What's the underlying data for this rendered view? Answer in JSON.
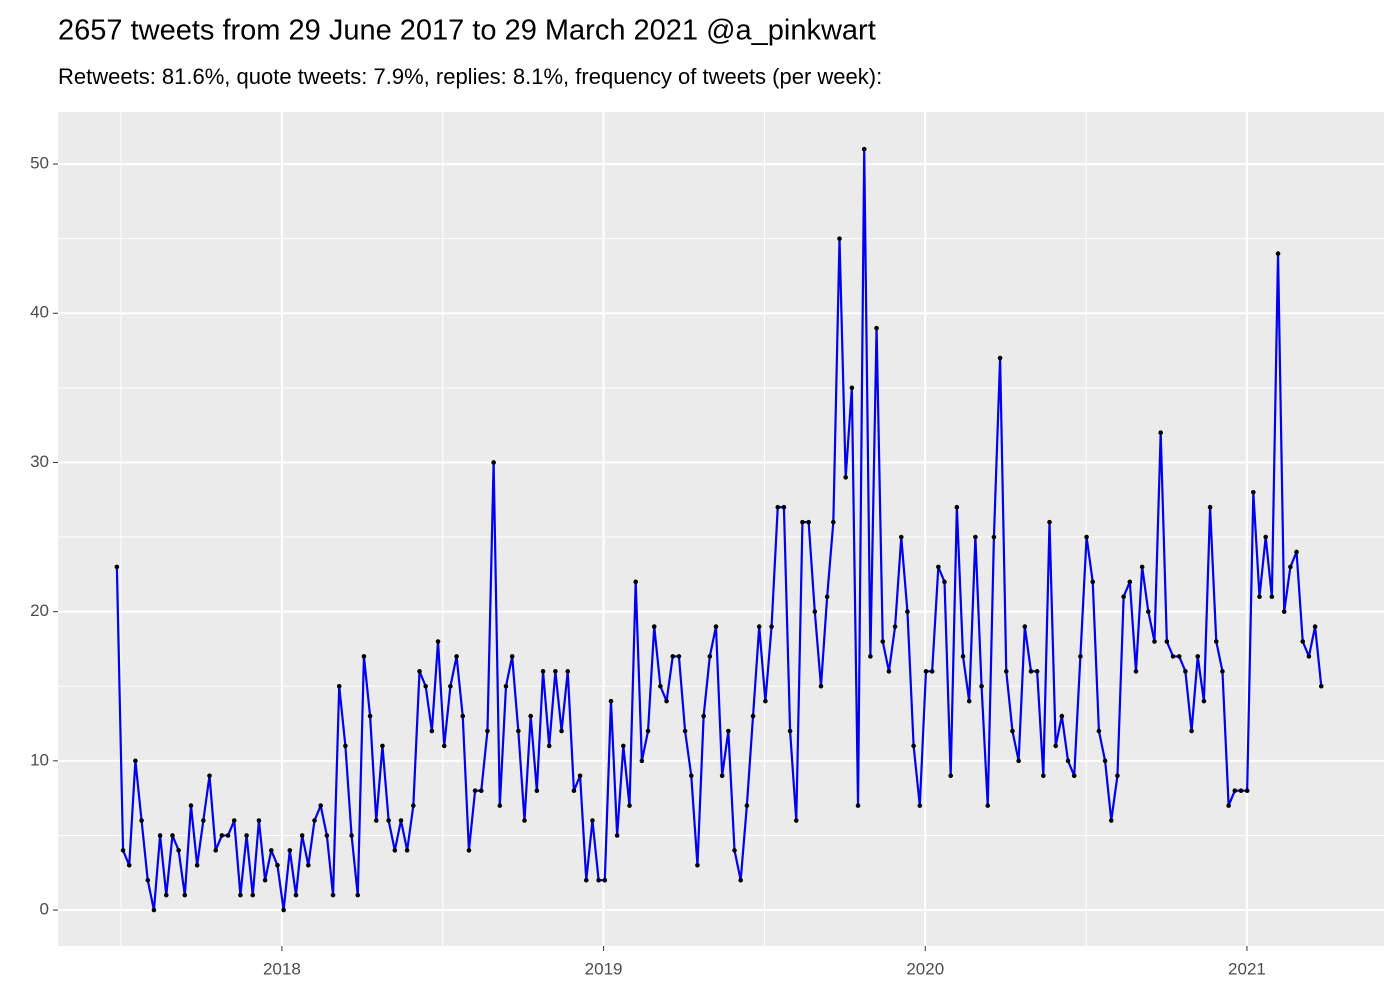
{
  "chart_data": {
    "type": "line",
    "title": "2657 tweets from 29 June 2017 to 29 March 2021 @a_pinkwart",
    "subtitle": "Retweets: 81.6%, quote tweets: 7.9%, replies: 8.1%, frequency of tweets (per week):",
    "x": [
      2017.487,
      2017.5062,
      2017.5254,
      2017.5446,
      2017.5638,
      2017.583,
      2017.6022,
      2017.6214,
      2017.6406,
      2017.6598,
      2017.679,
      2017.6982,
      2017.7174,
      2017.7366,
      2017.7558,
      2017.775,
      2017.7942,
      2017.8134,
      2017.8326,
      2017.8518,
      2017.871,
      2017.8902,
      2017.9094,
      2017.9286,
      2017.9478,
      2017.967,
      2017.9862,
      2018.0054,
      2018.0246,
      2018.0438,
      2018.063,
      2018.0822,
      2018.1014,
      2018.1206,
      2018.1398,
      2018.159,
      2018.1782,
      2018.1974,
      2018.2166,
      2018.2358,
      2018.255,
      2018.2742,
      2018.2934,
      2018.3126,
      2018.3318,
      2018.351,
      2018.3702,
      2018.3894,
      2018.4086,
      2018.4278,
      2018.447,
      2018.4662,
      2018.4854,
      2018.5046,
      2018.5238,
      2018.543,
      2018.5622,
      2018.5814,
      2018.6006,
      2018.6198,
      2018.639,
      2018.6582,
      2018.6774,
      2018.6966,
      2018.7158,
      2018.735,
      2018.7542,
      2018.7734,
      2018.7926,
      2018.8118,
      2018.831,
      2018.8502,
      2018.8694,
      2018.8886,
      2018.9078,
      2018.927,
      2018.9462,
      2018.9654,
      2018.9846,
      2019.0038,
      2019.023,
      2019.0422,
      2019.0614,
      2019.0806,
      2019.0998,
      2019.119,
      2019.1382,
      2019.1574,
      2019.1766,
      2019.1958,
      2019.215,
      2019.2342,
      2019.2534,
      2019.2726,
      2019.2918,
      2019.311,
      2019.3302,
      2019.3494,
      2019.3686,
      2019.3878,
      2019.407,
      2019.4262,
      2019.4454,
      2019.4646,
      2019.4838,
      2019.503,
      2019.5222,
      2019.5414,
      2019.5606,
      2019.5798,
      2019.599,
      2019.6182,
      2019.6374,
      2019.6566,
      2019.6758,
      2019.695,
      2019.7142,
      2019.7334,
      2019.7526,
      2019.7718,
      2019.791,
      2019.8102,
      2019.8294,
      2019.8486,
      2019.8678,
      2019.887,
      2019.9062,
      2019.9254,
      2019.9446,
      2019.9638,
      2019.983,
      2020.0022,
      2020.0214,
      2020.0406,
      2020.0598,
      2020.079,
      2020.0982,
      2020.1174,
      2020.1366,
      2020.1558,
      2020.175,
      2020.1942,
      2020.2134,
      2020.2326,
      2020.2518,
      2020.271,
      2020.2902,
      2020.3094,
      2020.3286,
      2020.3478,
      2020.367,
      2020.3862,
      2020.4054,
      2020.4246,
      2020.4438,
      2020.463,
      2020.4822,
      2020.5014,
      2020.5206,
      2020.5398,
      2020.559,
      2020.5782,
      2020.5974,
      2020.6166,
      2020.6358,
      2020.655,
      2020.6742,
      2020.6934,
      2020.7126,
      2020.7318,
      2020.751,
      2020.7702,
      2020.7894,
      2020.8086,
      2020.8278,
      2020.847,
      2020.8662,
      2020.8854,
      2020.9046,
      2020.9238,
      2020.943,
      2020.9622,
      2020.9814,
      2021.0006,
      2021.0198,
      2021.039,
      2021.0582,
      2021.0774,
      2021.0966,
      2021.1158,
      2021.135,
      2021.1542,
      2021.1734,
      2021.1926,
      2021.2118,
      2021.231
    ],
    "series": [
      {
        "color": "#0000ee",
        "point_color": "#000000",
        "values": [
          23,
          4,
          3,
          10,
          6,
          2,
          0,
          5,
          1,
          5,
          4,
          1,
          7,
          3,
          6,
          9,
          4,
          5,
          5,
          6,
          1,
          5,
          1,
          6,
          2,
          4,
          3,
          0,
          4,
          1,
          5,
          3,
          6,
          7,
          5,
          1,
          15,
          11,
          5,
          1,
          17,
          13,
          6,
          11,
          6,
          4,
          6,
          4,
          7,
          16,
          15,
          12,
          18,
          11,
          15,
          17,
          13,
          4,
          8,
          8,
          12,
          30,
          7,
          15,
          17,
          12,
          6,
          13,
          8,
          16,
          11,
          16,
          12,
          16,
          8,
          9,
          2,
          6,
          2,
          2,
          14,
          5,
          11,
          7,
          22,
          10,
          12,
          19,
          15,
          14,
          17,
          17,
          12,
          9,
          3,
          13,
          17,
          19,
          9,
          12,
          4,
          2,
          7,
          13,
          19,
          14,
          19,
          27,
          27,
          12,
          6,
          26,
          26,
          20,
          15,
          21,
          26,
          45,
          29,
          35,
          7,
          51,
          17,
          39,
          18,
          16,
          19,
          25,
          20,
          11,
          7,
          16,
          16,
          23,
          22,
          9,
          27,
          17,
          14,
          25,
          15,
          7,
          25,
          37,
          16,
          12,
          10,
          19,
          16,
          16,
          9,
          26,
          11,
          13,
          10,
          9,
          17,
          25,
          22,
          12,
          10,
          6,
          9,
          21,
          22,
          16,
          23,
          20,
          18,
          32,
          18,
          17,
          17,
          16,
          12,
          17,
          14,
          27,
          18,
          16,
          7,
          8,
          8,
          8,
          28,
          21,
          25,
          21,
          44,
          20,
          23,
          24,
          18,
          17,
          19,
          15
        ]
      }
    ],
    "xlim": [
      2017.304,
      2021.426
    ],
    "xticks": [
      2018,
      2019,
      2020,
      2021
    ],
    "ylim": [
      -2.41,
      53.49
    ],
    "yticks": [
      0,
      10,
      20,
      30,
      40,
      50
    ],
    "grid": true,
    "panel_color": "#ebebeb"
  }
}
